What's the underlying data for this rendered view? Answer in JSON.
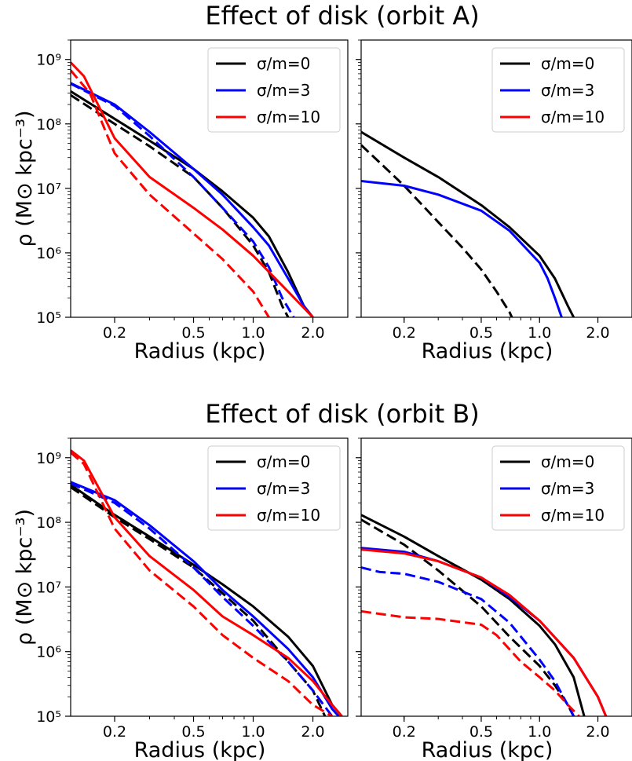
{
  "figure": {
    "titles": [
      "Effect of disk (orbit A)",
      "Effect of disk (orbit B)"
    ]
  },
  "chart_data": [
    {
      "type": "line",
      "title": "Effect of disk (orbit A)",
      "xlabel": "Radius (kpc)",
      "ylabel": "ρ (M⊙ kpc⁻³)",
      "xscale": "log",
      "yscale": "log",
      "xlim": [
        0.12,
        3.0
      ],
      "ylim": [
        100000,
        2000000000
      ],
      "xticks": [
        0.2,
        0.5,
        1.0,
        2.0
      ],
      "xticklabels": [
        "0.2",
        "0.5",
        "1.0",
        "2.0"
      ],
      "yticklabels": [
        "10⁵",
        "10⁶",
        "10⁷",
        "10⁸",
        "10⁹"
      ],
      "legend": "top-right",
      "legend_entries": [
        {
          "label": "σ/m=0",
          "color": "#000000"
        },
        {
          "label": "σ/m=3",
          "color": "#0000ff"
        },
        {
          "label": "σ/m=10",
          "color": "#ff0000"
        }
      ],
      "series": [
        {
          "color": "#000000",
          "dash": false,
          "points": [
            [
              0.12,
              320000000
            ],
            [
              0.2,
              120000000
            ],
            [
              0.3,
              55000000
            ],
            [
              0.5,
              20000000
            ],
            [
              0.7,
              9000000
            ],
            [
              1.0,
              3500000
            ],
            [
              1.2,
              1800000
            ],
            [
              1.5,
              500000
            ],
            [
              1.8,
              150000
            ],
            [
              2.0,
              100000
            ]
          ]
        },
        {
          "color": "#000000",
          "dash": true,
          "points": [
            [
              0.12,
              280000000
            ],
            [
              0.2,
              100000000
            ],
            [
              0.3,
              45000000
            ],
            [
              0.5,
              15000000
            ],
            [
              0.7,
              5000000
            ],
            [
              1.0,
              1300000
            ],
            [
              1.2,
              500000
            ],
            [
              1.4,
              150000
            ],
            [
              1.5,
              100000
            ]
          ]
        },
        {
          "color": "#0000ff",
          "dash": false,
          "points": [
            [
              0.12,
              430000000
            ],
            [
              0.2,
              200000000
            ],
            [
              0.3,
              75000000
            ],
            [
              0.5,
              20000000
            ],
            [
              0.7,
              8000000
            ],
            [
              1.0,
              2500000
            ],
            [
              1.2,
              1300000
            ],
            [
              1.5,
              400000
            ],
            [
              1.8,
              150000
            ],
            [
              2.0,
              100000
            ]
          ]
        },
        {
          "color": "#0000ff",
          "dash": true,
          "points": [
            [
              0.12,
              420000000
            ],
            [
              0.2,
              190000000
            ],
            [
              0.3,
              65000000
            ],
            [
              0.5,
              15000000
            ],
            [
              0.7,
              5000000
            ],
            [
              1.0,
              1500000
            ],
            [
              1.2,
              600000
            ],
            [
              1.4,
              200000
            ],
            [
              1.6,
              100000
            ]
          ]
        },
        {
          "color": "#ff0000",
          "dash": false,
          "points": [
            [
              0.12,
              900000000
            ],
            [
              0.14,
              550000000
            ],
            [
              0.2,
              60000000
            ],
            [
              0.3,
              15000000
            ],
            [
              0.5,
              5000000
            ],
            [
              0.7,
              2300000
            ],
            [
              1.0,
              900000
            ],
            [
              1.5,
              250000
            ],
            [
              2.0,
              100000
            ]
          ]
        },
        {
          "color": "#ff0000",
          "dash": true,
          "points": [
            [
              0.12,
              680000000
            ],
            [
              0.15,
              300000000
            ],
            [
              0.2,
              35000000
            ],
            [
              0.3,
              8000000
            ],
            [
              0.5,
              2000000
            ],
            [
              0.7,
              800000
            ],
            [
              1.0,
              250000
            ],
            [
              1.2,
              100000
            ]
          ]
        }
      ]
    },
    {
      "type": "line",
      "xlabel": "Radius (kpc)",
      "xscale": "log",
      "yscale": "log",
      "xlim": [
        0.12,
        3.0
      ],
      "ylim": [
        100000,
        2000000000
      ],
      "xticks": [
        0.2,
        0.5,
        1.0,
        2.0
      ],
      "xticklabels": [
        "0.2",
        "0.5",
        "1.0",
        "2.0"
      ],
      "legend": "top-right",
      "legend_entries": [
        {
          "label": "σ/m=0",
          "color": "#000000"
        },
        {
          "label": "σ/m=3",
          "color": "#0000ff"
        },
        {
          "label": "σ/m=10",
          "color": "#ff0000"
        }
      ],
      "series": [
        {
          "color": "#000000",
          "dash": false,
          "points": [
            [
              0.12,
              75000000
            ],
            [
              0.2,
              30000000
            ],
            [
              0.3,
              15000000
            ],
            [
              0.5,
              5500000
            ],
            [
              0.7,
              2500000
            ],
            [
              1.0,
              900000
            ],
            [
              1.2,
              400000
            ],
            [
              1.4,
              150000
            ],
            [
              1.5,
              100000
            ]
          ]
        },
        {
          "color": "#000000",
          "dash": true,
          "points": [
            [
              0.12,
              47000000
            ],
            [
              0.15,
              25000000
            ],
            [
              0.2,
              11000000
            ],
            [
              0.3,
              3000000
            ],
            [
              0.4,
              1200000
            ],
            [
              0.5,
              550000
            ],
            [
              0.6,
              250000
            ],
            [
              0.7,
              120000
            ],
            [
              0.72,
              100000
            ]
          ]
        },
        {
          "color": "#0000ff",
          "dash": false,
          "points": [
            [
              0.12,
              13000000
            ],
            [
              0.2,
              11000000
            ],
            [
              0.3,
              8000000
            ],
            [
              0.5,
              4500000
            ],
            [
              0.7,
              2200000
            ],
            [
              1.0,
              700000
            ],
            [
              1.1,
              400000
            ],
            [
              1.2,
              200000
            ],
            [
              1.3,
              100000
            ]
          ]
        }
      ]
    },
    {
      "type": "line",
      "title": "Effect of disk (orbit B)",
      "xlabel": "Radius (kpc)",
      "ylabel": "ρ (M⊙ kpc⁻³)",
      "xscale": "log",
      "yscale": "log",
      "xlim": [
        0.12,
        3.0
      ],
      "ylim": [
        100000,
        2000000000
      ],
      "xticks": [
        0.2,
        0.5,
        1.0,
        2.0
      ],
      "xticklabels": [
        "0.2",
        "0.5",
        "1.0",
        "2.0"
      ],
      "yticklabels": [
        "10⁵",
        "10⁶",
        "10⁷",
        "10⁸",
        "10⁹"
      ],
      "legend": "top-right",
      "legend_entries": [
        {
          "label": "σ/m=0",
          "color": "#000000"
        },
        {
          "label": "σ/m=3",
          "color": "#0000ff"
        },
        {
          "label": "σ/m=10",
          "color": "#ff0000"
        }
      ],
      "series": [
        {
          "color": "#000000",
          "dash": false,
          "points": [
            [
              0.12,
              380000000
            ],
            [
              0.2,
              130000000
            ],
            [
              0.3,
              60000000
            ],
            [
              0.5,
              22000000
            ],
            [
              0.7,
              11000000
            ],
            [
              1.0,
              5000000
            ],
            [
              1.5,
              1700000
            ],
            [
              2.0,
              600000
            ],
            [
              2.5,
              150000
            ],
            [
              2.8,
              100000
            ]
          ]
        },
        {
          "color": "#000000",
          "dash": true,
          "points": [
            [
              0.12,
              350000000
            ],
            [
              0.2,
              120000000
            ],
            [
              0.3,
              55000000
            ],
            [
              0.5,
              20000000
            ],
            [
              0.7,
              8000000
            ],
            [
              1.0,
              3000000
            ],
            [
              1.5,
              700000
            ],
            [
              2.0,
              250000
            ],
            [
              2.3,
              100000
            ]
          ]
        },
        {
          "color": "#0000ff",
          "dash": false,
          "points": [
            [
              0.12,
              420000000
            ],
            [
              0.2,
              220000000
            ],
            [
              0.3,
              90000000
            ],
            [
              0.5,
              25000000
            ],
            [
              0.7,
              9000000
            ],
            [
              1.0,
              3500000
            ],
            [
              1.5,
              1100000
            ],
            [
              2.0,
              400000
            ],
            [
              2.5,
              130000
            ],
            [
              2.7,
              100000
            ]
          ]
        },
        {
          "color": "#0000ff",
          "dash": true,
          "points": [
            [
              0.12,
              400000000
            ],
            [
              0.2,
              200000000
            ],
            [
              0.3,
              80000000
            ],
            [
              0.5,
              20000000
            ],
            [
              0.7,
              7000000
            ],
            [
              1.0,
              2500000
            ],
            [
              1.5,
              700000
            ],
            [
              2.0,
              250000
            ],
            [
              2.5,
              100000
            ]
          ]
        },
        {
          "color": "#ff0000",
          "dash": false,
          "points": [
            [
              0.12,
              1300000000
            ],
            [
              0.14,
              900000000
            ],
            [
              0.2,
              120000000
            ],
            [
              0.3,
              30000000
            ],
            [
              0.5,
              9000000
            ],
            [
              0.7,
              3500000
            ],
            [
              1.0,
              1800000
            ],
            [
              1.5,
              800000
            ],
            [
              2.0,
              350000
            ],
            [
              2.5,
              150000
            ],
            [
              2.8,
              100000
            ]
          ]
        },
        {
          "color": "#ff0000",
          "dash": true,
          "points": [
            [
              0.12,
              1200000000
            ],
            [
              0.14,
              800000000
            ],
            [
              0.2,
              80000000
            ],
            [
              0.3,
              18000000
            ],
            [
              0.5,
              5000000
            ],
            [
              0.7,
              1800000
            ],
            [
              1.0,
              800000
            ],
            [
              1.5,
              350000
            ],
            [
              2.0,
              150000
            ],
            [
              2.5,
              100000
            ]
          ]
        }
      ]
    },
    {
      "type": "line",
      "xlabel": "Radius (kpc)",
      "xscale": "log",
      "yscale": "log",
      "xlim": [
        0.12,
        3.0
      ],
      "ylim": [
        100000,
        2000000000
      ],
      "xticks": [
        0.2,
        0.5,
        1.0,
        2.0
      ],
      "xticklabels": [
        "0.2",
        "0.5",
        "1.0",
        "2.0"
      ],
      "legend": "top-right",
      "legend_entries": [
        {
          "label": "σ/m=0",
          "color": "#000000"
        },
        {
          "label": "σ/m=3",
          "color": "#0000ff"
        },
        {
          "label": "σ/m=10",
          "color": "#ff0000"
        }
      ],
      "series": [
        {
          "color": "#000000",
          "dash": false,
          "points": [
            [
              0.12,
              130000000
            ],
            [
              0.2,
              60000000
            ],
            [
              0.3,
              30000000
            ],
            [
              0.5,
              13000000
            ],
            [
              0.7,
              6500000
            ],
            [
              1.0,
              2500000
            ],
            [
              1.2,
              1300000
            ],
            [
              1.5,
              400000
            ],
            [
              1.7,
              100000
            ]
          ]
        },
        {
          "color": "#000000",
          "dash": true,
          "points": [
            [
              0.12,
              110000000
            ],
            [
              0.2,
              45000000
            ],
            [
              0.3,
              18000000
            ],
            [
              0.5,
              5000000
            ],
            [
              0.7,
              1700000
            ],
            [
              1.0,
              600000
            ],
            [
              1.2,
              300000
            ],
            [
              1.4,
              150000
            ],
            [
              1.5,
              100000
            ]
          ]
        },
        {
          "color": "#0000ff",
          "dash": false,
          "points": [
            [
              0.12,
              40000000
            ],
            [
              0.2,
              35000000
            ],
            [
              0.3,
              25000000
            ],
            [
              0.5,
              14000000
            ],
            [
              0.7,
              7000000
            ],
            [
              1.0,
              3000000
            ],
            [
              1.5,
              800000
            ],
            [
              2.0,
              200000
            ],
            [
              2.2,
              100000
            ]
          ]
        },
        {
          "color": "#0000ff",
          "dash": true,
          "points": [
            [
              0.12,
              20000000
            ],
            [
              0.15,
              17000000
            ],
            [
              0.2,
              16000000
            ],
            [
              0.3,
              12000000
            ],
            [
              0.5,
              6500000
            ],
            [
              0.7,
              2800000
            ],
            [
              1.0,
              750000
            ],
            [
              1.2,
              350000
            ],
            [
              1.5,
              100000
            ]
          ]
        },
        {
          "color": "#ff0000",
          "dash": false,
          "points": [
            [
              0.12,
              38000000
            ],
            [
              0.2,
              33000000
            ],
            [
              0.3,
              25000000
            ],
            [
              0.5,
              14000000
            ],
            [
              0.7,
              7500000
            ],
            [
              1.0,
              3000000
            ],
            [
              1.5,
              800000
            ],
            [
              2.0,
              200000
            ],
            [
              2.2,
              100000
            ]
          ]
        },
        {
          "color": "#ff0000",
          "dash": true,
          "points": [
            [
              0.12,
              4200000
            ],
            [
              0.2,
              3400000
            ],
            [
              0.3,
              3200000
            ],
            [
              0.5,
              2600000
            ],
            [
              0.6,
              1800000
            ],
            [
              0.8,
              700000
            ],
            [
              1.0,
              400000
            ],
            [
              1.2,
              250000
            ],
            [
              1.4,
              150000
            ],
            [
              1.6,
              100000
            ]
          ]
        }
      ]
    }
  ]
}
